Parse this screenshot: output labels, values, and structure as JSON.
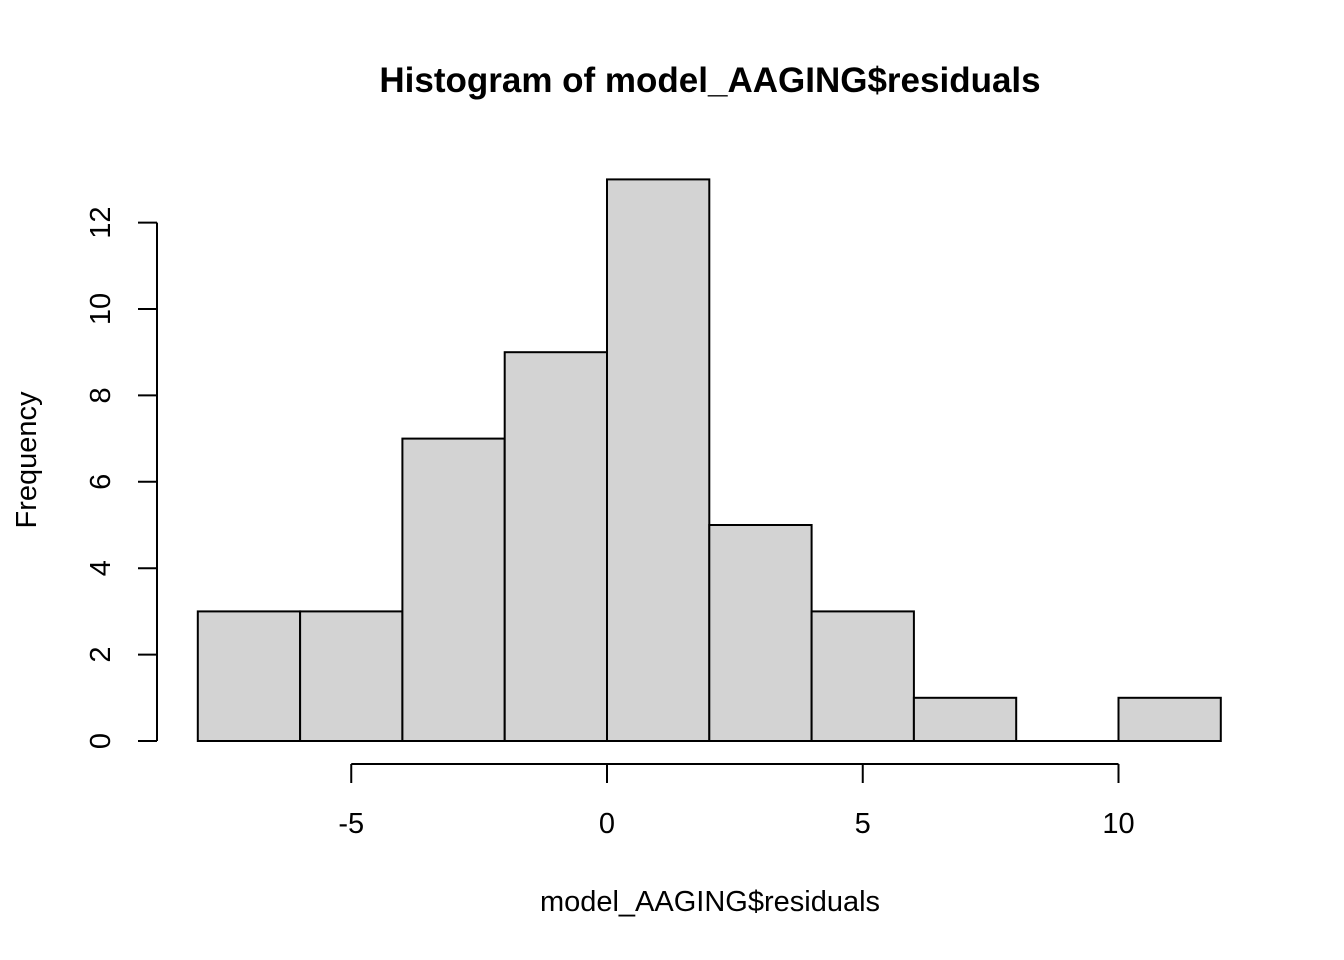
{
  "chart_data": {
    "type": "bar",
    "title": "Histogram of model_AAGING$residuals",
    "xlabel": "model_AAGING$residuals",
    "ylabel": "Frequency",
    "bins": [
      {
        "start": -8,
        "end": -6,
        "count": 3
      },
      {
        "start": -6,
        "end": -4,
        "count": 3
      },
      {
        "start": -4,
        "end": -2,
        "count": 7
      },
      {
        "start": -2,
        "end": 0,
        "count": 9
      },
      {
        "start": 0,
        "end": 2,
        "count": 13
      },
      {
        "start": 2,
        "end": 4,
        "count": 5
      },
      {
        "start": 4,
        "end": 6,
        "count": 3
      },
      {
        "start": 6,
        "end": 8,
        "count": 1
      },
      {
        "start": 8,
        "end": 10,
        "count": 0
      },
      {
        "start": 10,
        "end": 12,
        "count": 1
      }
    ],
    "xlim": [
      -8,
      12
    ],
    "ylim": [
      0,
      13
    ],
    "x_ticks": [
      -5,
      0,
      5,
      10
    ],
    "x_tick_labels": [
      "-5",
      "0",
      "5",
      "10"
    ],
    "y_ticks": [
      0,
      2,
      4,
      6,
      8,
      10,
      12
    ],
    "y_tick_labels": [
      "0",
      "2",
      "4",
      "6",
      "8",
      "10",
      "12"
    ],
    "grid": false,
    "colors": {
      "bar_fill": "#d3d3d3",
      "bar_stroke": "#000000"
    }
  }
}
